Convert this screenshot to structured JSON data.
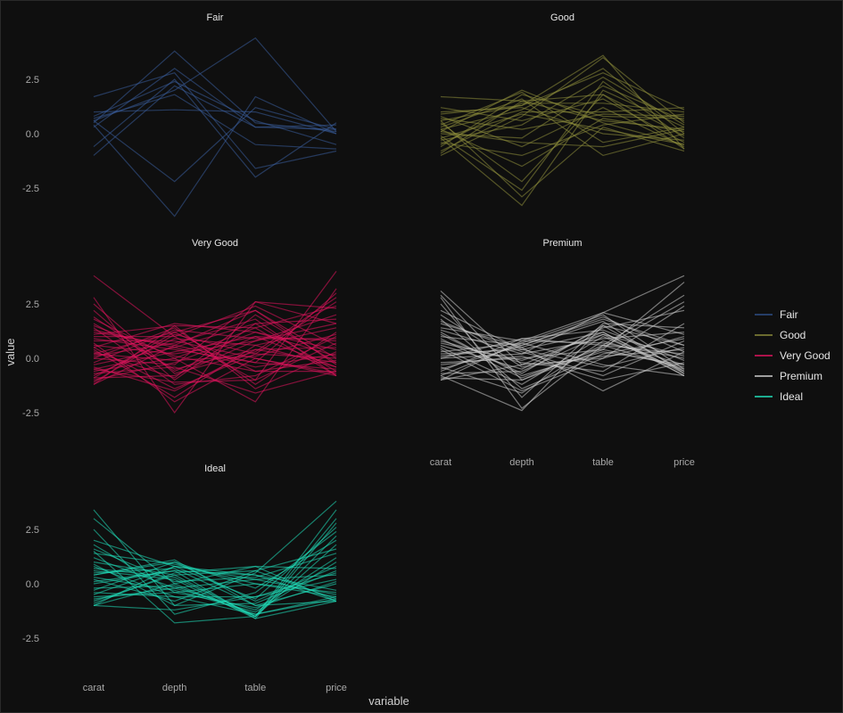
{
  "chart_data": {
    "type": "line",
    "subtype": "parallel-coordinates",
    "title": "",
    "xlabel": "variable",
    "ylabel": "value",
    "categories": [
      "carat",
      "depth",
      "table",
      "price"
    ],
    "y_ticks": [
      -2.5,
      0.0,
      2.5
    ],
    "y_tick_labels": [
      "-2.5",
      "0.0",
      "2.5"
    ],
    "ylim": [
      -4.1,
      4.6
    ],
    "grid": false,
    "legend_position": "right",
    "legend": [
      {
        "name": "Fair",
        "color": "#2f4f86"
      },
      {
        "name": "Good",
        "color": "#8a8a3a"
      },
      {
        "name": "Very Good",
        "color": "#e3145f"
      },
      {
        "name": "Premium",
        "color": "#cfcfcf"
      },
      {
        "name": "Ideal",
        "color": "#21e0bc"
      }
    ],
    "panels": [
      {
        "name": "Fair",
        "color": "#3a5f9e",
        "lines": [
          [
            0.5,
            3.8,
            0.5,
            0.1
          ],
          [
            -1.0,
            2.2,
            0.3,
            0.2
          ],
          [
            0.6,
            2.0,
            4.4,
            0.1
          ],
          [
            1.7,
            2.8,
            -1.6,
            -0.8
          ],
          [
            0.4,
            -3.8,
            1.7,
            0.0
          ],
          [
            -0.6,
            2.5,
            -2.0,
            0.5
          ],
          [
            0.6,
            -2.2,
            1.2,
            0.2
          ],
          [
            0.8,
            2.4,
            0.6,
            -0.5
          ],
          [
            1.0,
            1.1,
            1.0,
            0.0
          ],
          [
            0.3,
            3.0,
            0.3,
            0.4
          ],
          [
            0.7,
            1.8,
            -0.5,
            -0.7
          ]
        ]
      },
      {
        "name": "Good",
        "color": "#8f8f3d",
        "lines": [
          [
            1.7,
            1.5,
            0.6,
            0.2
          ],
          [
            0.9,
            1.3,
            3.6,
            -0.7
          ],
          [
            -0.2,
            -3.3,
            2.0,
            0.3
          ],
          [
            0.1,
            2.0,
            0.5,
            -0.5
          ],
          [
            -0.5,
            1.4,
            1.4,
            1.0
          ],
          [
            0.2,
            -1.5,
            0.7,
            0.1
          ],
          [
            -1.0,
            0.8,
            3.5,
            0.5
          ],
          [
            0.6,
            -2.9,
            0.3,
            -0.8
          ],
          [
            0.3,
            1.6,
            -1.0,
            0.0
          ],
          [
            -0.8,
            1.0,
            1.0,
            1.2
          ],
          [
            0.0,
            -0.2,
            2.2,
            0.6
          ],
          [
            1.0,
            1.2,
            0.0,
            -0.3
          ],
          [
            -0.3,
            0.4,
            2.6,
            0.4
          ],
          [
            0.5,
            -2.2,
            1.8,
            -0.1
          ],
          [
            -0.6,
            1.8,
            0.8,
            0.7
          ],
          [
            0.8,
            -0.6,
            1.2,
            -0.6
          ],
          [
            0.2,
            1.1,
            3.0,
            0.0
          ],
          [
            -0.4,
            -1.0,
            0.4,
            0.9
          ],
          [
            1.2,
            0.6,
            1.6,
            -0.4
          ],
          [
            0.4,
            1.9,
            -0.4,
            0.3
          ],
          [
            -0.1,
            -2.6,
            2.4,
            -0.2
          ],
          [
            0.7,
            0.2,
            0.9,
            0.8
          ],
          [
            -0.9,
            1.5,
            1.8,
            -0.7
          ],
          [
            0.1,
            -0.4,
            -0.6,
            0.2
          ],
          [
            0.6,
            1.3,
            2.8,
            1.1
          ],
          [
            -0.2,
            0.9,
            0.2,
            -0.5
          ]
        ]
      },
      {
        "name": "Very Good",
        "color": "#e3145f",
        "lines": [
          [
            3.8,
            1.0,
            -1.0,
            4.0
          ],
          [
            2.8,
            -2.5,
            2.6,
            2.3
          ],
          [
            1.8,
            0.0,
            -2.0,
            3.2
          ],
          [
            -1.2,
            1.5,
            1.4,
            -0.8
          ],
          [
            0.5,
            -1.4,
            0.2,
            2.6
          ],
          [
            1.2,
            0.6,
            2.2,
            0.0
          ],
          [
            -0.9,
            -0.8,
            0.8,
            1.6
          ],
          [
            0.2,
            1.2,
            -0.6,
            -0.6
          ],
          [
            -0.5,
            0.3,
            1.0,
            0.8
          ],
          [
            1.6,
            -0.5,
            0.4,
            -0.2
          ],
          [
            0.0,
            1.4,
            -1.2,
            1.2
          ],
          [
            -1.0,
            -0.2,
            1.2,
            0.4
          ],
          [
            0.8,
            0.8,
            0.0,
            -0.8
          ],
          [
            2.2,
            -1.0,
            1.6,
            1.8
          ],
          [
            -0.3,
            0.5,
            -0.4,
            0.2
          ],
          [
            0.4,
            -1.8,
            0.6,
            -0.4
          ],
          [
            1.0,
            1.0,
            2.4,
            0.6
          ],
          [
            -0.7,
            -0.4,
            -1.6,
            -0.6
          ],
          [
            0.6,
            0.2,
            0.8,
            2.0
          ],
          [
            -1.1,
            1.1,
            0.2,
            0.0
          ],
          [
            1.4,
            -1.2,
            -0.8,
            1.0
          ],
          [
            0.1,
            0.7,
            1.8,
            -0.8
          ],
          [
            -0.4,
            -1.5,
            0.4,
            0.5
          ],
          [
            0.9,
            0.4,
            -0.2,
            3.0
          ],
          [
            1.9,
            -0.6,
            1.0,
            -0.4
          ],
          [
            -0.8,
            0.9,
            0.6,
            1.4
          ],
          [
            0.3,
            -0.9,
            2.0,
            -0.2
          ],
          [
            1.1,
            1.5,
            -1.4,
            0.3
          ],
          [
            -0.6,
            0.0,
            1.4,
            2.4
          ],
          [
            0.7,
            -2.0,
            0.0,
            -0.7
          ],
          [
            -0.2,
            1.3,
            0.9,
            0.9
          ],
          [
            1.5,
            0.1,
            -0.6,
            -0.1
          ],
          [
            0.0,
            -0.3,
            2.6,
            1.6
          ],
          [
            -1.2,
            0.6,
            -0.2,
            -0.5
          ],
          [
            0.5,
            1.6,
            1.2,
            0.1
          ],
          [
            2.5,
            -0.7,
            0.3,
            2.8
          ],
          [
            -0.5,
            -1.1,
            -1.0,
            0.7
          ],
          [
            1.3,
            0.5,
            1.6,
            -0.6
          ],
          [
            0.2,
            -0.1,
            0.1,
            1.1
          ],
          [
            -0.9,
            1.2,
            2.2,
            -0.3
          ]
        ]
      },
      {
        "name": "Premium",
        "color": "#cfcfcf",
        "lines": [
          [
            3.1,
            -0.3,
            1.2,
            -0.8
          ],
          [
            2.8,
            -2.3,
            0.6,
            2.9
          ],
          [
            -1.0,
            0.8,
            2.1,
            3.8
          ],
          [
            0.4,
            -1.5,
            0.0,
            2.4
          ],
          [
            1.6,
            0.5,
            -1.5,
            0.3
          ],
          [
            -0.8,
            -2.4,
            1.5,
            -0.6
          ],
          [
            0.0,
            0.2,
            0.9,
            1.2
          ],
          [
            1.2,
            -0.8,
            0.3,
            -0.3
          ],
          [
            -0.5,
            0.6,
            1.8,
            0.6
          ],
          [
            0.8,
            -0.2,
            -0.6,
            1.6
          ],
          [
            2.2,
            0.4,
            1.2,
            -0.7
          ],
          [
            -0.9,
            -1.0,
            0.6,
            0.2
          ],
          [
            0.3,
            0.7,
            2.0,
            -0.5
          ],
          [
            1.8,
            -1.4,
            0.2,
            0.9
          ],
          [
            -0.3,
            0.1,
            -1.0,
            -0.2
          ],
          [
            0.6,
            -0.5,
            1.4,
            2.2
          ],
          [
            1.4,
            0.8,
            0.7,
            0.0
          ],
          [
            -0.7,
            -0.6,
            1.1,
            -0.8
          ],
          [
            0.2,
            0.4,
            -0.4,
            0.5
          ],
          [
            2.5,
            -1.8,
            1.6,
            1.4
          ],
          [
            -0.2,
            0.0,
            0.4,
            -0.4
          ],
          [
            1.0,
            0.6,
            1.9,
            0.3
          ],
          [
            -1.0,
            -0.3,
            0.0,
            1.0
          ],
          [
            0.5,
            -1.2,
            1.0,
            -0.6
          ],
          [
            1.7,
            0.3,
            -0.8,
            0.8
          ],
          [
            -0.6,
            0.9,
            1.3,
            -0.1
          ],
          [
            0.9,
            -0.9,
            0.5,
            2.6
          ],
          [
            0.1,
            0.5,
            1.7,
            -0.7
          ],
          [
            2.0,
            -0.4,
            0.1,
            0.4
          ],
          [
            -0.4,
            -1.6,
            0.8,
            -0.3
          ],
          [
            1.3,
            0.2,
            2.1,
            1.1
          ],
          [
            -0.8,
            0.7,
            -0.3,
            -0.8
          ],
          [
            0.7,
            -0.1,
            1.1,
            0.1
          ],
          [
            2.9,
            -1.0,
            0.4,
            3.5
          ],
          [
            0.0,
            0.9,
            0.6,
            -0.5
          ],
          [
            1.1,
            -0.7,
            1.5,
            0.6
          ]
        ]
      },
      {
        "name": "Ideal",
        "color": "#21e0bc",
        "lines": [
          [
            3.4,
            -1.0,
            0.5,
            3.8
          ],
          [
            3.0,
            0.0,
            -1.5,
            3.4
          ],
          [
            2.0,
            0.8,
            -0.7,
            2.6
          ],
          [
            -1.0,
            0.0,
            0.8,
            0.7
          ],
          [
            1.5,
            -1.8,
            -1.5,
            2.2
          ],
          [
            0.4,
            1.1,
            -1.0,
            -0.8
          ],
          [
            -0.8,
            0.4,
            0.6,
            1.6
          ],
          [
            0.8,
            -0.6,
            -1.4,
            -0.6
          ],
          [
            -0.5,
            0.8,
            0.2,
            0.4
          ],
          [
            1.2,
            -0.2,
            -1.2,
            1.2
          ],
          [
            0.0,
            0.6,
            0.4,
            -0.8
          ],
          [
            -1.0,
            -1.2,
            -0.6,
            0.2
          ],
          [
            0.6,
            0.2,
            -1.6,
            2.8
          ],
          [
            1.8,
            -0.4,
            0.0,
            -0.4
          ],
          [
            -0.3,
            1.0,
            -0.8,
            0.8
          ],
          [
            0.2,
            -0.8,
            0.6,
            -0.7
          ],
          [
            1.0,
            0.4,
            -1.5,
            1.8
          ],
          [
            -0.7,
            -0.2,
            0.2,
            -0.5
          ],
          [
            0.5,
            0.7,
            -1.0,
            0.0
          ],
          [
            2.5,
            -1.4,
            -0.4,
            2.4
          ],
          [
            -0.9,
            0.5,
            0.8,
            -0.8
          ],
          [
            0.3,
            -0.3,
            -1.3,
            1.0
          ],
          [
            1.4,
            0.9,
            0.0,
            -0.6
          ],
          [
            -0.4,
            -0.6,
            -0.6,
            0.5
          ],
          [
            0.7,
            0.3,
            -1.5,
            3.0
          ],
          [
            -1.0,
            0.8,
            0.4,
            -0.3
          ],
          [
            0.9,
            -1.0,
            -0.9,
            0.6
          ],
          [
            0.1,
            0.6,
            -1.6,
            -0.8
          ],
          [
            1.6,
            0.1,
            0.3,
            1.4
          ],
          [
            -0.6,
            -0.4,
            -1.1,
            0.1
          ],
          [
            0.4,
            1.0,
            -0.2,
            2.0
          ],
          [
            -0.2,
            -0.1,
            -1.4,
            -0.7
          ]
        ]
      }
    ]
  }
}
